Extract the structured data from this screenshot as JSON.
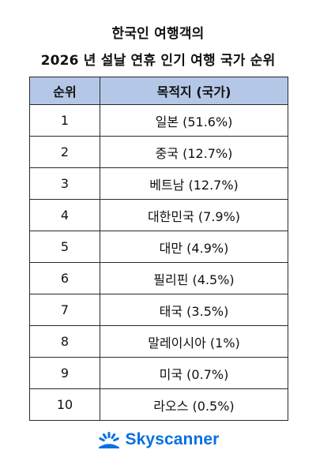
{
  "title": {
    "line1": "한국인 여행객의",
    "line2": "2026 년 설날 연휴 인기 여행 국가 순위"
  },
  "table": {
    "headers": [
      "순위",
      "목적지 (국가)"
    ],
    "rows": [
      {
        "rank": "1",
        "destination": "일본 (51.6%)"
      },
      {
        "rank": "2",
        "destination": "중국 (12.7%)"
      },
      {
        "rank": "3",
        "destination": "베트남 (12.7%)"
      },
      {
        "rank": "4",
        "destination": "대한민국 (7.9%)"
      },
      {
        "rank": "5",
        "destination": "대만 (4.9%)"
      },
      {
        "rank": "6",
        "destination": "필리핀 (4.5%)"
      },
      {
        "rank": "7",
        "destination": "태국 (3.5%)"
      },
      {
        "rank": "8",
        "destination": "말레이시아 (1%)"
      },
      {
        "rank": "9",
        "destination": "미국 (0.7%)"
      },
      {
        "rank": "10",
        "destination": "라오스 (0.5%)"
      }
    ],
    "header_color": "#b4c7e7"
  },
  "brand": {
    "name": "Skyscanner",
    "icon": "skyscanner-sunrise-icon",
    "color": "#0770e3"
  }
}
